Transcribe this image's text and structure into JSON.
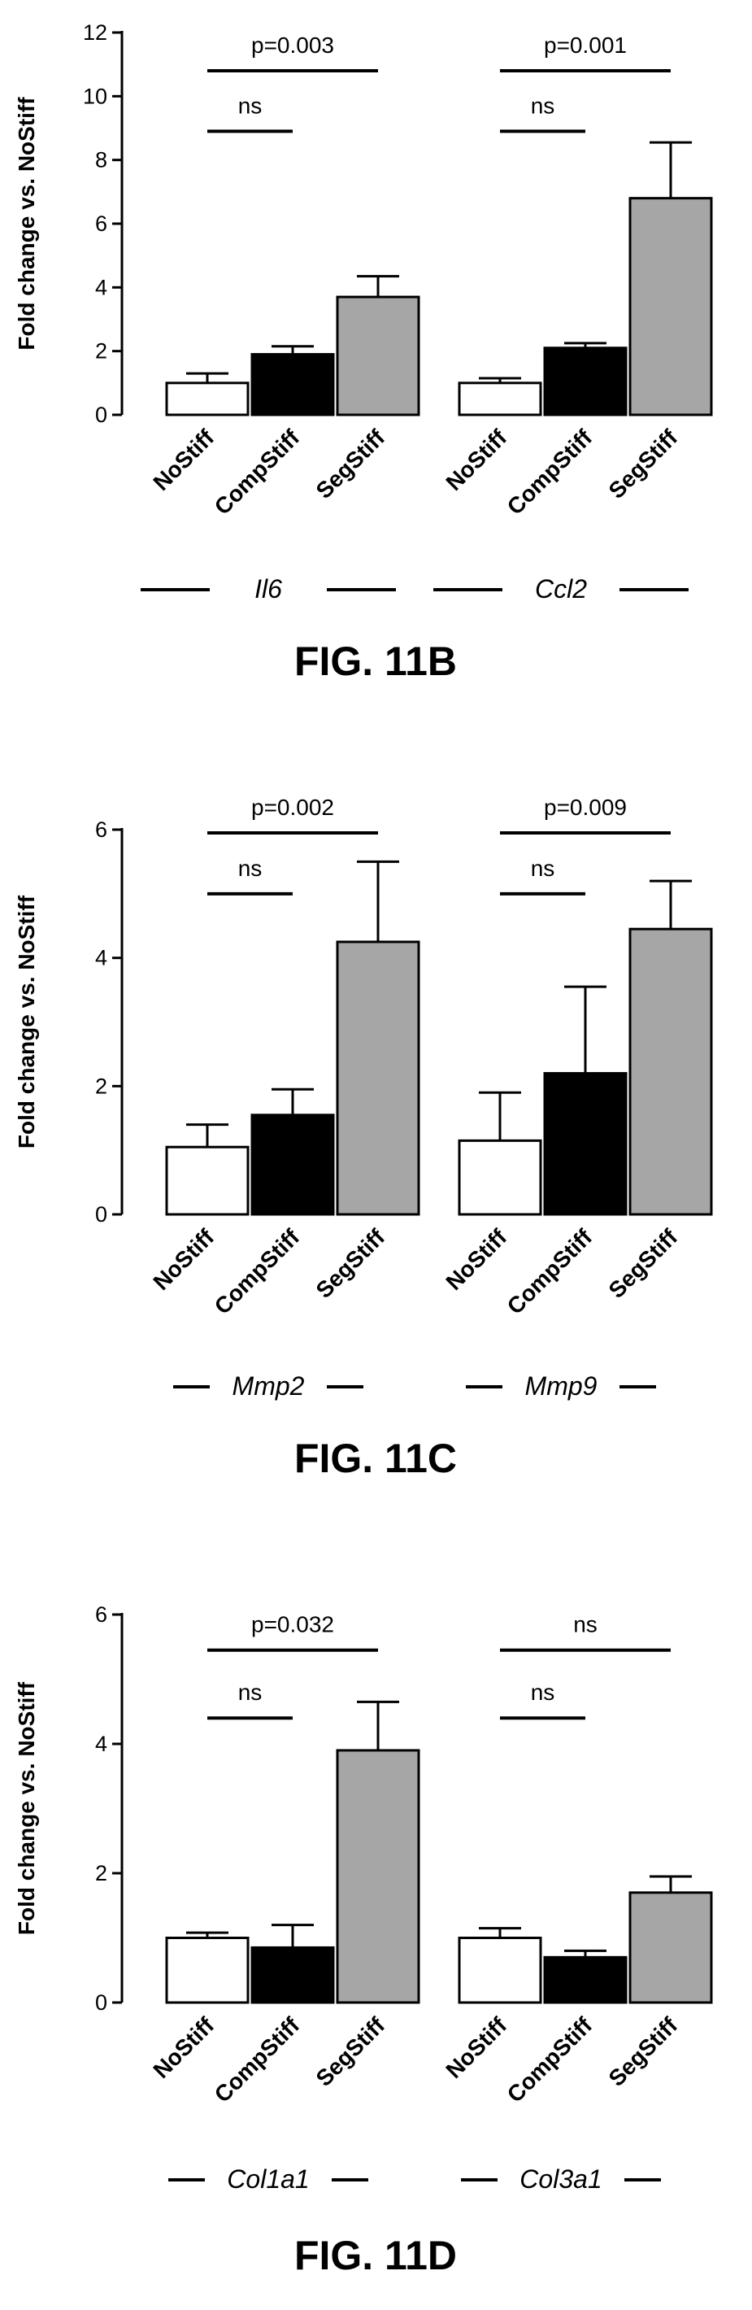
{
  "chart_data": [
    {
      "type": "bar",
      "caption": "FIG. 11B",
      "ylabel": "Fold change vs. NoStiff",
      "ylim": [
        0,
        12
      ],
      "yticks": [
        0,
        2,
        4,
        6,
        8,
        10,
        12
      ],
      "categories": [
        "NoStiff",
        "CompStiff",
        "SegStiff"
      ],
      "colors": {
        "NoStiff": "#ffffff",
        "CompStiff": "#000000",
        "SegStiff": "#a6a6a6"
      },
      "groups": [
        {
          "gene": "Il6",
          "values": [
            1.0,
            1.9,
            3.7
          ],
          "errors": [
            0.3,
            0.25,
            0.65
          ],
          "significance": [
            {
              "label": "p=0.003",
              "from": 0,
              "to": 2,
              "y": 10.8
            },
            {
              "label": "ns",
              "from": 0,
              "to": 1,
              "y": 8.9
            }
          ]
        },
        {
          "gene": "Ccl2",
          "values": [
            1.0,
            2.1,
            6.8
          ],
          "errors": [
            0.15,
            0.15,
            1.75
          ],
          "significance": [
            {
              "label": "p=0.001",
              "from": 0,
              "to": 2,
              "y": 10.8
            },
            {
              "label": "ns",
              "from": 0,
              "to": 1,
              "y": 8.9
            }
          ]
        }
      ]
    },
    {
      "type": "bar",
      "caption": "FIG. 11C",
      "ylabel": "Fold change vs. NoStiff",
      "ylim": [
        0,
        6
      ],
      "yticks": [
        0,
        2,
        4,
        6
      ],
      "categories": [
        "NoStiff",
        "CompStiff",
        "SegStiff"
      ],
      "colors": {
        "NoStiff": "#ffffff",
        "CompStiff": "#000000",
        "SegStiff": "#a6a6a6"
      },
      "groups": [
        {
          "gene": "Mmp2",
          "values": [
            1.05,
            1.55,
            4.25
          ],
          "errors": [
            0.35,
            0.4,
            1.25
          ],
          "significance": [
            {
              "label": "p=0.002",
              "from": 0,
              "to": 2,
              "y": 5.95
            },
            {
              "label": "ns",
              "from": 0,
              "to": 1,
              "y": 5.0
            }
          ]
        },
        {
          "gene": "Mmp9",
          "values": [
            1.15,
            2.2,
            4.45
          ],
          "errors": [
            0.75,
            1.35,
            0.75
          ],
          "significance": [
            {
              "label": "p=0.009",
              "from": 0,
              "to": 2,
              "y": 5.95
            },
            {
              "label": "ns",
              "from": 0,
              "to": 1,
              "y": 5.0
            }
          ]
        }
      ]
    },
    {
      "type": "bar",
      "caption": "FIG. 11D",
      "ylabel": "Fold change vs. NoStiff",
      "ylim": [
        0,
        6
      ],
      "yticks": [
        0,
        2,
        4,
        6
      ],
      "categories": [
        "NoStiff",
        "CompStiff",
        "SegStiff"
      ],
      "colors": {
        "NoStiff": "#ffffff",
        "CompStiff": "#000000",
        "SegStiff": "#a6a6a6"
      },
      "groups": [
        {
          "gene": "Col1a1",
          "values": [
            1.0,
            0.85,
            3.9
          ],
          "errors": [
            0.08,
            0.35,
            0.75
          ],
          "significance": [
            {
              "label": "p=0.032",
              "from": 0,
              "to": 2,
              "y": 5.45
            },
            {
              "label": "ns",
              "from": 0,
              "to": 1,
              "y": 4.4
            }
          ]
        },
        {
          "gene": "Col3a1",
          "values": [
            1.0,
            0.7,
            1.7
          ],
          "errors": [
            0.15,
            0.1,
            0.25
          ],
          "significance": [
            {
              "label": "ns",
              "from": 0,
              "to": 2,
              "y": 5.45
            },
            {
              "label": "ns",
              "from": 0,
              "to": 1,
              "y": 4.4
            }
          ]
        }
      ]
    }
  ]
}
